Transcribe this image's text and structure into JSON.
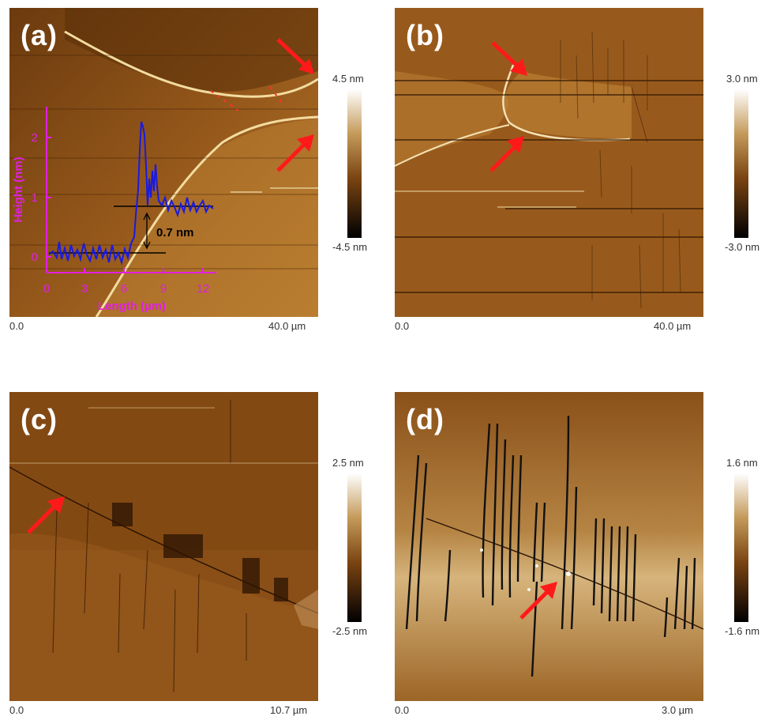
{
  "panels": [
    {
      "id": "a",
      "label": "(a)",
      "x_start": "0.0",
      "x_end": "40.0 µm",
      "scale_max": "4.5 nm",
      "scale_min": "-4.5 nm"
    },
    {
      "id": "b",
      "label": "(b)",
      "x_start": "0.0",
      "x_end": "40.0 µm",
      "scale_max": "3.0 nm",
      "scale_min": "-3.0 nm"
    },
    {
      "id": "c",
      "label": "(c)",
      "x_start": "0.0",
      "x_end": "10.7 µm",
      "scale_max": "2.5 nm",
      "scale_min": "-2.5 nm"
    },
    {
      "id": "d",
      "label": "(d)",
      "x_start": "0.0",
      "x_end": "3.0 µm",
      "scale_max": "1.6 nm",
      "scale_min": "-1.6 nm"
    }
  ],
  "inset": {
    "ylabel": "Height (nm)",
    "xlabel": "Length (µm)",
    "yticks": [
      "0",
      "1",
      "2"
    ],
    "xticks": [
      "0",
      "3",
      "6",
      "9",
      "12"
    ],
    "step_annotation": "0.7 nm",
    "colors": {
      "axis": "#e020e0",
      "profile": "#1a1ae0",
      "arrow": "#ff2020"
    }
  }
}
